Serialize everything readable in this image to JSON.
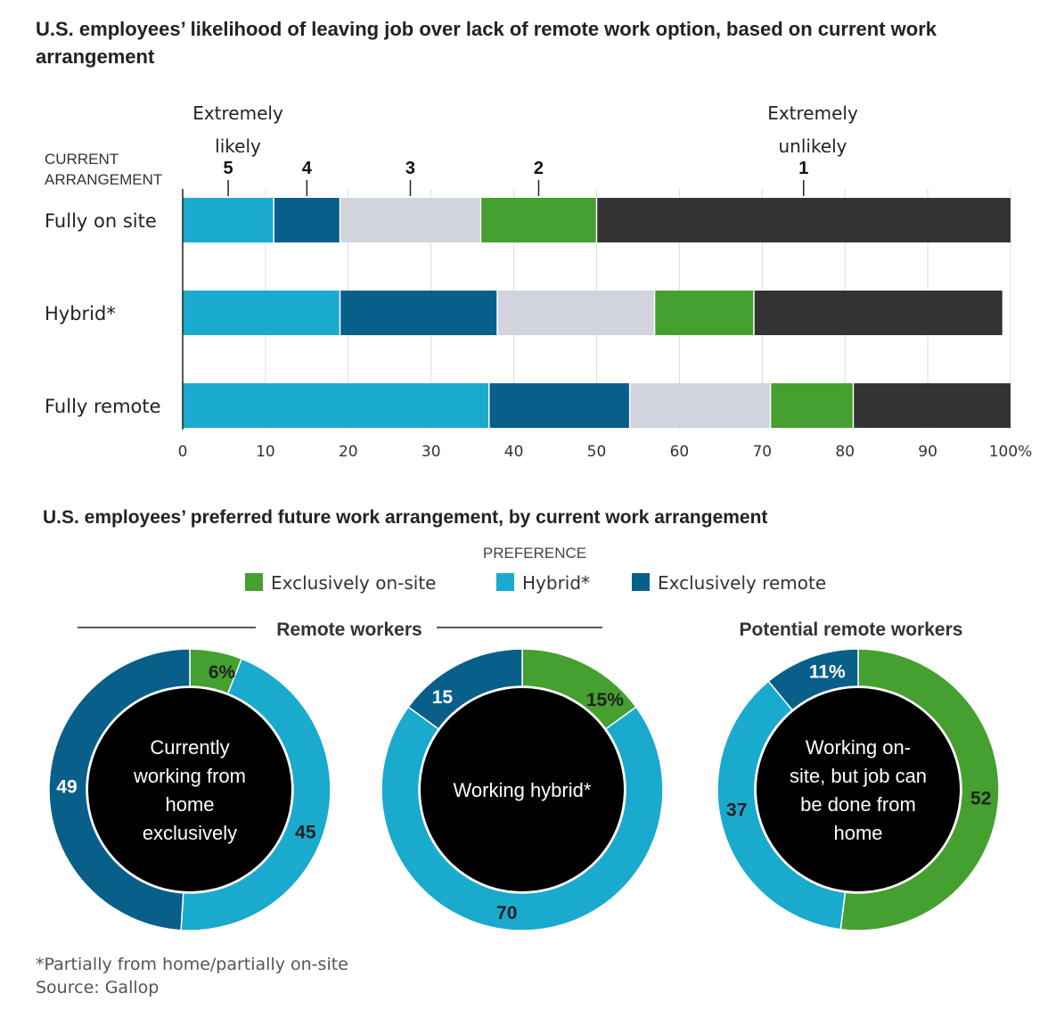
{
  "bar_chart": {
    "title_line1": "U.S. employees’ likelihood of leaving job over lack of remote work option, based on current work",
    "title_line2": "arrangement",
    "row_header_line1": "CURRENT",
    "row_header_line2": "ARRANGEMENT",
    "extreme_left_line1": "Extremely",
    "extreme_left_line2": "likely",
    "extreme_right_line1": "Extremely",
    "extreme_right_line2": "unlikely",
    "scale_labels": [
      "5",
      "4",
      "3",
      "2",
      "1"
    ],
    "x_tick_labels": [
      "0",
      "10",
      "20",
      "30",
      "40",
      "50",
      "60",
      "70",
      "80",
      "90",
      "100%"
    ]
  },
  "donut_section": {
    "title": "U.S. employees’ preferred future work arrangement, by current work arrangement",
    "legend_title": "PREFERENCE",
    "legend": [
      {
        "label": "Exclusively on-site",
        "color": "#45a02f"
      },
      {
        "label": "Hybrid*",
        "color": "#1aaacd"
      },
      {
        "label": "Exclusively remote",
        "color": "#075f8a"
      }
    ],
    "group_remote_label": "Remote workers",
    "group_potential_label": "Potential remote workers"
  },
  "chart_data": [
    {
      "type": "bar",
      "orientation": "horizontal",
      "stacked": true,
      "categories": [
        "Fully on site",
        "Hybrid*",
        "Fully remote"
      ],
      "series": [
        {
          "name": "5",
          "color": "#1aaacd",
          "values": [
            11,
            19,
            37
          ]
        },
        {
          "name": "4",
          "color": "#075f8a",
          "values": [
            8,
            19,
            17
          ]
        },
        {
          "name": "3",
          "color": "#d1d3de",
          "values": [
            17,
            19,
            17
          ]
        },
        {
          "name": "2",
          "color": "#45a02f",
          "values": [
            14,
            12,
            10
          ]
        },
        {
          "name": "1",
          "color": "#333333",
          "values": [
            50,
            30,
            19
          ]
        }
      ],
      "xlim": [
        0,
        100
      ],
      "xticks": [
        0,
        10,
        20,
        30,
        40,
        50,
        60,
        70,
        80,
        90,
        100
      ],
      "grid": true
    },
    {
      "type": "pie",
      "center_label_lines": [
        "Currently",
        "working from",
        "home",
        "exclusively"
      ],
      "slices": [
        {
          "name": "Exclusively on-site",
          "value": 6,
          "label": "6%",
          "color": "#45a02f"
        },
        {
          "name": "Hybrid*",
          "value": 45,
          "label": "45",
          "color": "#1aaacd"
        },
        {
          "name": "Exclusively remote",
          "value": 49,
          "label": "49",
          "color": "#075f8a"
        }
      ]
    },
    {
      "type": "pie",
      "center_label_lines": [
        "Working hybrid*"
      ],
      "slices": [
        {
          "name": "Exclusively on-site",
          "value": 15,
          "label": "15%",
          "color": "#45a02f"
        },
        {
          "name": "Hybrid*",
          "value": 70,
          "label": "70",
          "color": "#1aaacd"
        },
        {
          "name": "Exclusively remote",
          "value": 15,
          "label": "15",
          "color": "#075f8a"
        }
      ]
    },
    {
      "type": "pie",
      "center_label_lines": [
        "Working on-",
        "site, but job can",
        "be done from",
        "home"
      ],
      "slices": [
        {
          "name": "Exclusively on-site",
          "value": 52,
          "label": "52",
          "color": "#45a02f"
        },
        {
          "name": "Hybrid*",
          "value": 37,
          "label": "37",
          "color": "#1aaacd"
        },
        {
          "name": "Exclusively remote",
          "value": 11,
          "label": "11%",
          "color": "#075f8a"
        }
      ]
    }
  ],
  "footnote": "*Partially from home/partially on-site",
  "source": "Source: Gallop"
}
